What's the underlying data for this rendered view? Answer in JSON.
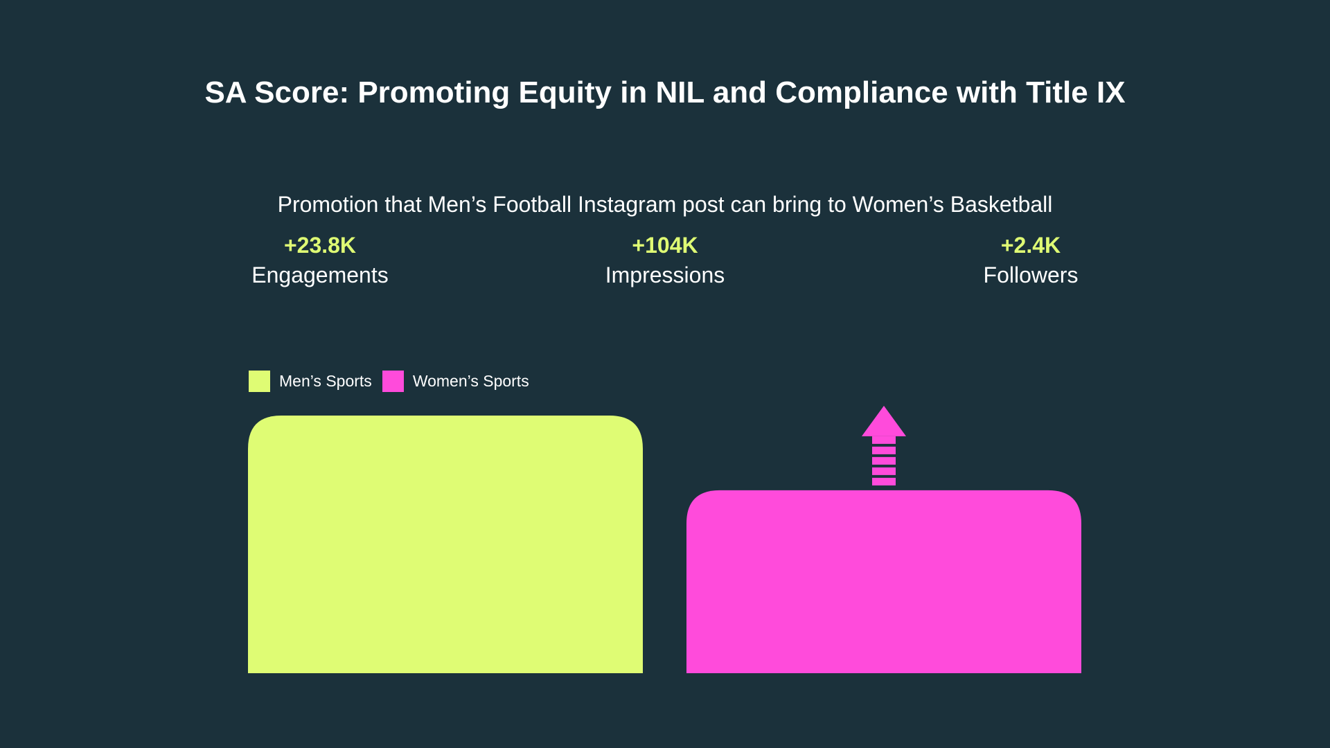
{
  "title": "SA Score: Promoting Equity in NIL and Compliance with Title IX",
  "subtitle": "Promotion that Men’s Football Instagram post can bring to Women’s Basketball",
  "colors": {
    "background": "#1b313b",
    "mens": "#dffc74",
    "womens": "#ff4bdb",
    "text": "#ffffff"
  },
  "stats": [
    {
      "value": "+23.8K",
      "label": "Engagements"
    },
    {
      "value": "+104K",
      "label": "Impressions"
    },
    {
      "value": "+2.4K",
      "label": "Followers"
    }
  ],
  "chart_data": {
    "type": "bar",
    "categories": [
      "Men’s Sports",
      "Women’s Sports"
    ],
    "values": [
      100,
      71
    ],
    "ylim": [
      0,
      100
    ],
    "grid": false,
    "legend_position": "top-left",
    "legend": [
      "Men’s Sports",
      "Women’s Sports"
    ],
    "annotation": "up-arrow-icon"
  }
}
